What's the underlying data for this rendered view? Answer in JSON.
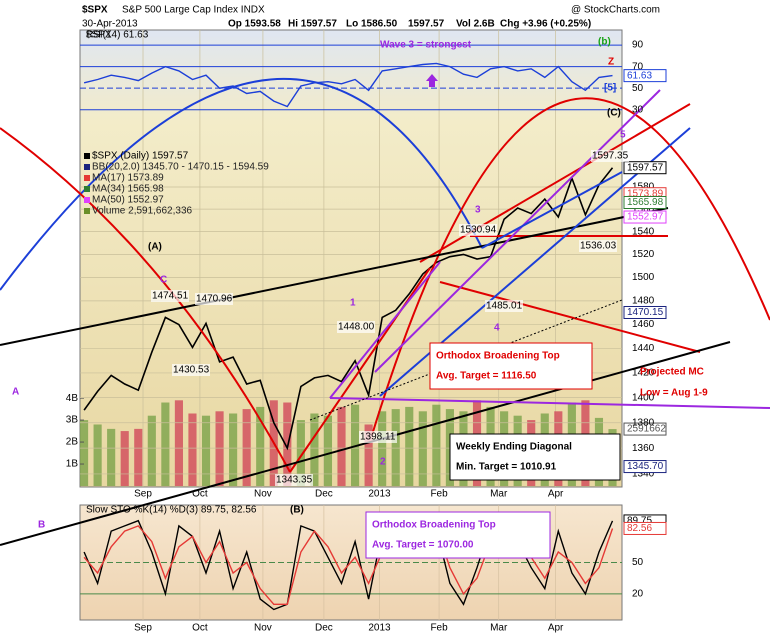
{
  "header": {
    "symbol": "$SPX",
    "name": "S&P 500 Large Cap Index INDX",
    "source": "@ StockCharts.com",
    "date": "30-Apr-2013",
    "quote": [
      "Op 1593.58",
      "Hi 1597.57",
      "Lo 1586.50",
      "1597.57",
      "Vol 2.6B",
      "Chg +3.96 (+0.25%)"
    ]
  },
  "legend": [
    {
      "text": "$SPX (Daily) 1597.57",
      "color": "#000000"
    },
    {
      "text": "BB(20,2.0) 1345.70 - 1470.15 - 1594.59",
      "color": "#1a237e"
    },
    {
      "text": "MA(17) 1573.89",
      "color": "#e53935"
    },
    {
      "text": "MA(34) 1565.98",
      "color": "#2e7d32"
    },
    {
      "text": "MA(50) 1552.97",
      "color": "#e040fb"
    },
    {
      "text": "Volume 2,591,662,336",
      "color": "#6a8f2a"
    }
  ],
  "annotations": [
    {
      "text": "Wave 3 = strongest",
      "color": "#9c27e0"
    },
    {
      "text": "(b)",
      "color": "#16a316"
    },
    {
      "text": "Z",
      "color": "#e00000"
    },
    {
      "text": "[5]",
      "color": "#1c3fd8"
    },
    {
      "text": "(C)",
      "color": "#000000"
    },
    {
      "text": "5",
      "color": "#9c27e0"
    },
    {
      "text": "(A)",
      "color": "#000000"
    },
    {
      "text": "C",
      "color": "#9c27e0"
    },
    {
      "text": "1",
      "color": "#9c27e0"
    },
    {
      "text": "3",
      "color": "#9c27e0"
    },
    {
      "text": "4",
      "color": "#9c27e0"
    },
    {
      "text": "2",
      "color": "#9c27e0"
    },
    {
      "text": "(B)",
      "color": "#000000"
    },
    {
      "text": "A",
      "color": "#9c27e0"
    },
    {
      "text": "B",
      "color": "#9c27e0"
    },
    {
      "text": "Projected MC",
      "color": "#e00000"
    },
    {
      "text": "Low = Aug 1-9",
      "color": "#e00000"
    }
  ],
  "boxes": [
    {
      "lines": [
        "Orthodox Broadening Top",
        "Avg. Target = 1116.50"
      ],
      "color": "#e00000"
    },
    {
      "lines": [
        "Weekly Ending Diagonal",
        "Min. Target = 1010.91"
      ],
      "color": "#000000"
    },
    {
      "lines": [
        "Orthodox Broadening Top",
        "Avg. Target = 1070.00"
      ],
      "color": "#9c27e0"
    }
  ],
  "point_labels": [
    "1474.51",
    "1470.96",
    "1430.53",
    "1448.00",
    "1398.11",
    "1343.35",
    "1530.94",
    "1485.01",
    "1597.35",
    "1536.03"
  ],
  "chart_data": [
    {
      "type": "line",
      "title": "$SPX",
      "log_scale": true,
      "grid": true,
      "xlim": [
        -0.3,
        39.7
      ],
      "xticks": [
        {
          "value": 4.35,
          "label": "Sep"
        },
        {
          "value": 8.55,
          "label": "Oct"
        },
        {
          "value": 13.2,
          "label": "Nov"
        },
        {
          "value": 17.7,
          "label": "Dec"
        },
        {
          "value": 21.8,
          "label": "2013"
        },
        {
          "value": 26.2,
          "label": "Feb"
        },
        {
          "value": 30.6,
          "label": "Mar"
        },
        {
          "value": 34.8,
          "label": "Apr"
        }
      ],
      "ylim": [
        1330,
        1729
      ],
      "yticks": [
        1340,
        1360,
        1380,
        1400,
        1420,
        1440,
        1460,
        1480,
        1500,
        1520,
        1540,
        1560,
        1580
      ],
      "series": [
        {
          "name": "$SPX",
          "color": "#000000",
          "values": [
            1390,
            1405,
            1418,
            1411,
            1406,
            1437,
            1466,
            1460,
            1441,
            1461,
            1429,
            1433,
            1411,
            1414,
            1380,
            1360,
            1409,
            1416,
            1418,
            1413,
            1430,
            1402,
            1466,
            1472,
            1486,
            1503,
            1513,
            1518,
            1520,
            1516,
            1518,
            1551,
            1561,
            1556,
            1569,
            1553,
            1588,
            1555,
            1582,
            1597.57
          ]
        }
      ],
      "value_tags": [
        {
          "value": 1597.57,
          "color": "#000000"
        },
        {
          "value": 1573.89,
          "color": "#e53935"
        },
        {
          "value": 1565.98,
          "color": "#2e7d32"
        },
        {
          "value": 1552.97,
          "color": "#e040fb"
        },
        {
          "value": 1470.15,
          "color": "#1a237e"
        },
        {
          "value": {
            "value": 1345.7,
            "label": "1345.70"
          },
          "color": "#1a237e"
        }
      ],
      "volume": {
        "values": [
          3.0,
          2.8,
          2.6,
          2.5,
          2.6,
          3.2,
          3.8,
          3.9,
          3.3,
          3.2,
          3.4,
          3.3,
          3.5,
          3.6,
          3.9,
          3.8,
          3.0,
          3.3,
          3.2,
          3.6,
          3.7,
          2.8,
          3.4,
          3.5,
          3.6,
          3.4,
          3.7,
          3.5,
          3.4,
          3.9,
          3.6,
          3.4,
          3.2,
          3.0,
          3.3,
          3.4,
          3.8,
          3.9,
          3.1,
          2.59
        ],
        "ylim": [
          0,
          20.8
        ],
        "yticks": [
          {
            "value": 1,
            "label": "1B"
          },
          {
            "value": 2,
            "label": "2B"
          },
          {
            "value": 3,
            "label": "3B"
          },
          {
            "value": 4,
            "label": "4B"
          }
        ],
        "tag": {
          "value": 2.591662,
          "label": "2591662"
        },
        "up_color": "#7ba24a",
        "down_color": "#d1485a"
      }
    },
    {
      "type": "line",
      "title": "RSI(14) 61.63",
      "ylim": [
        26,
        104
      ],
      "yticks": [
        30,
        50,
        70,
        90
      ],
      "series": [
        {
          "name": "RSI(14)",
          "color": "#1c3fd8",
          "values": [
            55,
            58,
            62,
            60,
            57,
            64,
            70,
            66,
            58,
            62,
            50,
            52,
            45,
            47,
            38,
            33,
            52,
            55,
            56,
            54,
            58,
            48,
            66,
            68,
            70,
            72,
            73,
            70,
            63,
            60,
            68,
            70,
            66,
            68,
            60,
            70,
            56,
            48,
            60,
            61.63
          ]
        }
      ],
      "value_tags": [
        {
          "value": 61.63,
          "color": "#1c3fd8"
        }
      ]
    },
    {
      "type": "line",
      "title": "Slow STO %K(14) %D(3) 89.75, 82.56",
      "ylim": [
        -5,
        105
      ],
      "yticks": [
        20,
        50
      ],
      "series": [
        {
          "name": "%K",
          "color": "#000000",
          "values": [
            60,
            30,
            80,
            85,
            90,
            60,
            20,
            85,
            75,
            40,
            80,
            25,
            60,
            15,
            5,
            10,
            85,
            80,
            55,
            30,
            70,
            15,
            80,
            90,
            88,
            85,
            82,
            30,
            10,
            45,
            85,
            90,
            70,
            45,
            25,
            80,
            40,
            20,
            60,
            89.75
          ]
        },
        {
          "name": "%D",
          "color": "#e53935",
          "values": [
            55,
            40,
            65,
            80,
            85,
            70,
            35,
            65,
            75,
            50,
            70,
            40,
            50,
            25,
            10,
            10,
            60,
            80,
            65,
            40,
            55,
            30,
            60,
            85,
            88,
            86,
            84,
            45,
            20,
            35,
            70,
            88,
            78,
            55,
            35,
            60,
            50,
            30,
            45,
            82.56
          ]
        }
      ],
      "value_tags": [
        {
          "value": 89.75,
          "color": "#000000"
        },
        {
          "value": 82.56,
          "color": "#e53935"
        }
      ]
    }
  ]
}
